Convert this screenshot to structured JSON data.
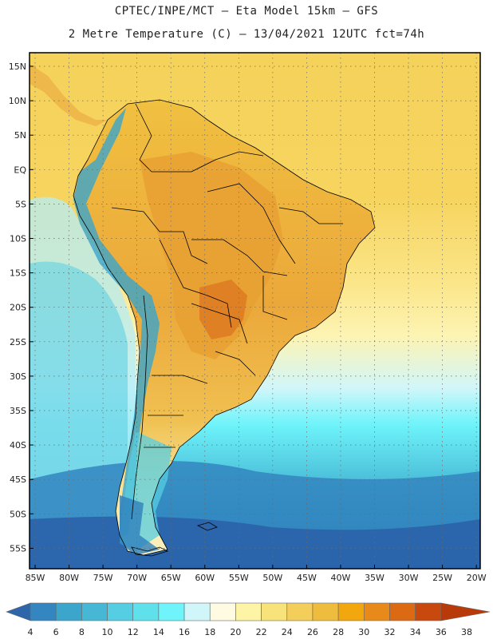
{
  "title": {
    "line1": "CPTEC/INPE/MCT –  Eta Model 15km – GFS",
    "line2": "2 Metre Temperature (C) – 13/04/2021 12UTC fct=74h"
  },
  "map": {
    "lat_labels": [
      "15N",
      "10N",
      "5N",
      "EQ",
      "5S",
      "10S",
      "15S",
      "20S",
      "25S",
      "30S",
      "35S",
      "40S",
      "45S",
      "50S",
      "55S"
    ],
    "lon_labels": [
      "85W",
      "80W",
      "75W",
      "70W",
      "65W",
      "60W",
      "55W",
      "50W",
      "45W",
      "40W",
      "35W",
      "30W",
      "25W",
      "20W"
    ],
    "grid_style": "dotted",
    "colors": {
      "ocean_warm": "#f5d25a",
      "ocean_mid": "#fbe88a",
      "land_hot": "#e9a233",
      "land_warm": "#f0c040",
      "land_hottest": "#e07a22",
      "andes_cool": "#5bc4da",
      "ocean_cool": "#54d6e8",
      "ocean_cold": "#2f8dc6",
      "ocean_coldest": "#2a62a8",
      "border": "#000000"
    }
  },
  "colorbar": {
    "labels": [
      "4",
      "6",
      "8",
      "10",
      "12",
      "14",
      "16",
      "18",
      "20",
      "22",
      "24",
      "26",
      "28",
      "30",
      "32",
      "34",
      "36",
      "38"
    ],
    "colors": [
      "#2e66aa",
      "#3386c0",
      "#3ba5cc",
      "#46b8d6",
      "#55cde2",
      "#5fe1ec",
      "#6ef4fa",
      "#d1f6fa",
      "#fffae2",
      "#fdf5a5",
      "#f8e27a",
      "#f3ce5a",
      "#efbd3e",
      "#f2a70e",
      "#e88a1a",
      "#dc6a12",
      "#c8480d",
      "#b8390a"
    ]
  }
}
